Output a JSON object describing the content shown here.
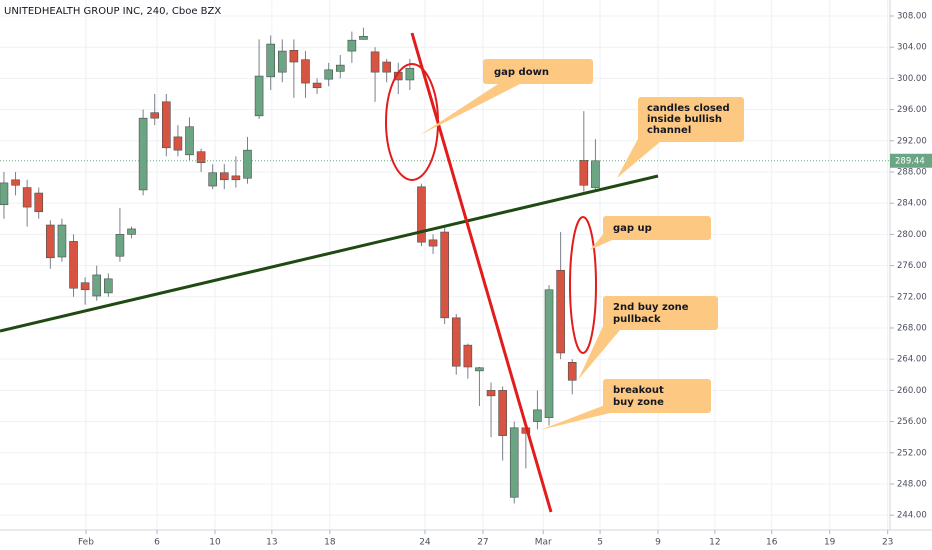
{
  "chart_data": {
    "type": "candlestick",
    "title": "UNITEDHEALTH GROUP INC, 240, Cboe BZX",
    "x": [
      0,
      1,
      2,
      3,
      4,
      5,
      6,
      7,
      8,
      9,
      10,
      11,
      12,
      13,
      14,
      15,
      16,
      17,
      18,
      19,
      20,
      21,
      22,
      23,
      24,
      25,
      26,
      27,
      28,
      29,
      30,
      31,
      32,
      33,
      34,
      35,
      36,
      37,
      38,
      39,
      40,
      41,
      42,
      43,
      44,
      45,
      46,
      47,
      48,
      49,
      50,
      51
    ],
    "open": [
      283.8,
      287,
      286,
      285.3,
      281.2,
      277.1,
      279.1,
      273.8,
      272.1,
      272.5,
      277.2,
      280,
      285.7,
      295.6,
      297,
      292.5,
      290.2,
      290.6,
      286.2,
      287.9,
      287.5,
      287.2,
      295.2,
      300.2,
      300.8,
      303.6,
      302.4,
      299.4,
      299.9,
      300.9,
      303.5,
      305,
      303.4,
      302.1,
      300.8,
      299.8,
      286.1,
      279.3,
      280.3,
      269.3,
      265.8,
      262.5,
      260,
      260,
      246.3,
      255.2,
      256,
      256.5,
      275.4,
      263.6,
      289.5,
      286
    ],
    "high": [
      288,
      288,
      287,
      286,
      281.8,
      282,
      280,
      274.5,
      276,
      275,
      283.4,
      281,
      296,
      298,
      298,
      294,
      295,
      291,
      289,
      289,
      290,
      292.5,
      305,
      305.5,
      305,
      305,
      303.5,
      300,
      302,
      303,
      306,
      306.5,
      304,
      302.5,
      302,
      302.5,
      286.5,
      280,
      281,
      269.8,
      266,
      263,
      261,
      260.5,
      256,
      256,
      260,
      273.5,
      280.3,
      264,
      295.8,
      292.2
    ],
    "low": [
      282,
      285,
      281,
      282,
      275.6,
      276.5,
      272,
      271,
      271.5,
      272,
      276.5,
      279.5,
      285,
      294,
      290,
      290,
      289.5,
      288,
      285.8,
      285.8,
      286,
      286.5,
      294.8,
      298.5,
      299.5,
      297.5,
      297.5,
      298,
      299,
      300,
      302,
      305,
      297,
      299.5,
      298,
      298.5,
      278.5,
      277.5,
      268.5,
      262,
      261.5,
      258,
      254,
      251,
      245.5,
      250,
      255,
      255.5,
      264,
      259.5,
      285.5,
      285.5
    ],
    "close": [
      286.6,
      286.3,
      283.5,
      282.9,
      277,
      281.2,
      273.1,
      272.9,
      274.8,
      274.3,
      280,
      280.7,
      294.9,
      294.9,
      291.1,
      290.8,
      293.8,
      289.2,
      287.9,
      287,
      287,
      290.8,
      300.3,
      304.4,
      303.5,
      302.1,
      299.4,
      298.8,
      301.1,
      301.7,
      304.9,
      305.4,
      300.8,
      300.8,
      299.8,
      301.3,
      279,
      278.5,
      269.3,
      263.1,
      263,
      262.9,
      259.3,
      254.2,
      255.2,
      254.5,
      257.5,
      272.9,
      264.8,
      261.3,
      286.3,
      289.44
    ],
    "up_color": "#6ba583",
    "down_color": "#d75442",
    "last_price": 289.44,
    "xlim": [
      -0.34,
      76.4
    ],
    "xticks": [
      {
        "value": 7.07,
        "label": "Feb"
      },
      {
        "value": 13.2,
        "label": "6"
      },
      {
        "value": 18.2,
        "label": "10"
      },
      {
        "value": 23.1,
        "label": "13"
      },
      {
        "value": 28.1,
        "label": "18"
      },
      {
        "value": 36.3,
        "label": "24"
      },
      {
        "value": 41.3,
        "label": "27"
      },
      {
        "value": 46.5,
        "label": "Mar"
      },
      {
        "value": 51.4,
        "label": "5"
      },
      {
        "value": 56.4,
        "label": "9"
      },
      {
        "value": 61.3,
        "label": "12"
      },
      {
        "value": 66.2,
        "label": "16"
      },
      {
        "value": 71.2,
        "label": "19"
      },
      {
        "value": 76.2,
        "label": "23"
      }
    ],
    "ylim": [
      242.1,
      310.05
    ],
    "yticks": [
      {
        "value": 244,
        "label": "244.00"
      },
      {
        "value": 248,
        "label": "248.00"
      },
      {
        "value": 252,
        "label": "252.00"
      },
      {
        "value": 256,
        "label": "256.00"
      },
      {
        "value": 260,
        "label": "260.00"
      },
      {
        "value": 264,
        "label": "264.00"
      },
      {
        "value": 268,
        "label": "268.00"
      },
      {
        "value": 272,
        "label": "272.00"
      },
      {
        "value": 276,
        "label": "276.00"
      },
      {
        "value": 280,
        "label": "280.00"
      },
      {
        "value": 284,
        "label": "284.00"
      },
      {
        "value": 288,
        "label": "288.00"
      },
      {
        "value": 292,
        "label": "292.00"
      },
      {
        "value": 296,
        "label": "296.00"
      },
      {
        "value": 300,
        "label": "300.00"
      },
      {
        "value": 304,
        "label": "304.00"
      },
      {
        "value": 308,
        "label": "308.00"
      }
    ],
    "grid": true,
    "annotations": [
      {
        "text": [
          "gap down"
        ]
      },
      {
        "text": [
          "candles closed",
          "inside bullish",
          "channel"
        ]
      },
      {
        "text": [
          "gap up"
        ]
      },
      {
        "text": [
          "2nd buy zone",
          "pullback"
        ]
      },
      {
        "text": [
          "breakout",
          "buy zone"
        ]
      }
    ]
  }
}
